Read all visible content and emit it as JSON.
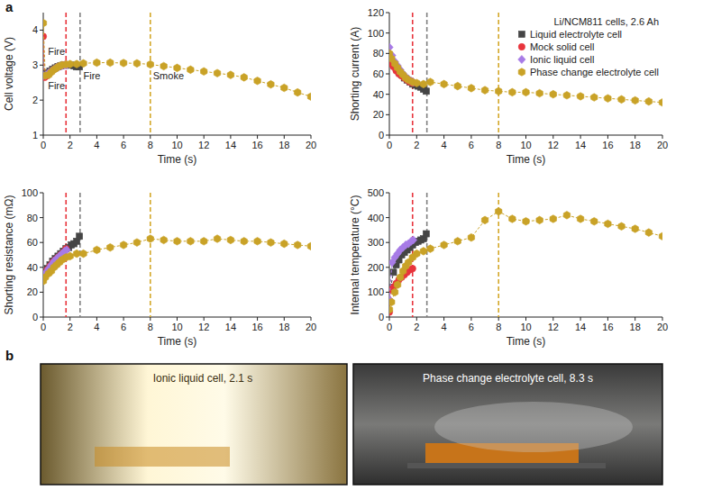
{
  "chart_data": [
    {
      "type": "line",
      "xlabel": "Time (s)",
      "ylabel": "Cell voltage (V)",
      "xlim": [
        0,
        20
      ],
      "xticks": [
        0,
        2,
        4,
        6,
        8,
        10,
        12,
        14,
        16,
        18,
        20
      ],
      "ylim": [
        1,
        4.5
      ],
      "yticks": [
        1,
        2,
        3,
        4
      ],
      "series": [
        {
          "color": "#454545",
          "marker": "square",
          "line_style": "dashed",
          "x": [
            0.1,
            0.3,
            0.5,
            0.7,
            0.9,
            1.1,
            1.3,
            1.5,
            1.7,
            1.9,
            2.1,
            2.3,
            2.5,
            2.7
          ],
          "values": [
            2.75,
            2.78,
            2.83,
            2.88,
            2.92,
            2.96,
            2.98,
            3.0,
            3.0,
            3.0,
            3.0,
            2.98,
            2.95,
            2.95
          ]
        },
        {
          "color": "#e8343c",
          "marker": "circle",
          "line_style": "dashed",
          "x": [
            0,
            0.1,
            0.3,
            0.5,
            0.7,
            0.9,
            1.1,
            1.3,
            1.5,
            1.7
          ],
          "values": [
            3.82,
            2.65,
            2.7,
            2.78,
            2.85,
            2.9,
            2.95,
            2.98,
            3.0,
            3.02
          ]
        },
        {
          "color": "#a77be6",
          "marker": "diamond",
          "line_style": "dashed",
          "x": [
            0,
            0.2,
            0.4,
            0.6,
            0.8,
            1.0,
            1.2,
            1.4,
            1.6,
            1.75
          ],
          "values": [
            2.7,
            2.72,
            2.78,
            2.83,
            2.88,
            2.93,
            2.96,
            2.98,
            3.0,
            3.0
          ]
        },
        {
          "color": "#c9a227",
          "marker": "hexagon",
          "line_style": "dashed",
          "x": [
            0,
            0.15,
            0.4,
            0.6,
            0.8,
            1.0,
            1.2,
            1.4,
            1.7,
            2.0,
            2.5,
            3,
            4,
            5,
            6,
            7,
            8,
            9,
            10,
            11,
            12,
            13,
            14,
            15,
            16,
            17,
            18,
            19,
            20
          ],
          "values": [
            4.2,
            2.7,
            2.72,
            2.8,
            2.87,
            2.92,
            2.97,
            3.0,
            3.02,
            3.03,
            3.03,
            3.05,
            3.07,
            3.07,
            3.06,
            3.05,
            3.02,
            2.97,
            2.92,
            2.87,
            2.82,
            2.77,
            2.72,
            2.65,
            2.55,
            2.45,
            2.35,
            2.22,
            2.1
          ]
        }
      ],
      "reference_lines": [
        {
          "x": 1.7,
          "color": "#e8343c"
        },
        {
          "x": 2.75,
          "color": "#808080"
        },
        {
          "x": 8,
          "color": "#d4a82a"
        }
      ],
      "annotations": [
        {
          "text": "Fire",
          "x": 0.35,
          "y": 3.3
        },
        {
          "text": "Fire",
          "x": 0.35,
          "y": 2.3
        },
        {
          "text": "Fire",
          "x": 3.0,
          "y": 2.6
        },
        {
          "text": "Smoke",
          "x": 8.2,
          "y": 2.6
        }
      ]
    },
    {
      "type": "line",
      "xlabel": "Time (s)",
      "ylabel": "Shorting current (A)",
      "xlim": [
        0,
        20
      ],
      "xticks": [
        0,
        2,
        4,
        6,
        8,
        10,
        12,
        14,
        16,
        18,
        20
      ],
      "ylim": [
        0,
        120
      ],
      "yticks": [
        0,
        20,
        40,
        60,
        80,
        100,
        120
      ],
      "legend": "top-right",
      "legend_title": "Li/NCM811 cells, 2.6 Ah",
      "series": [
        {
          "name": "Liquid electrolyte cell",
          "color": "#454545",
          "marker": "square",
          "line_style": "dashed",
          "x": [
            0.1,
            0.3,
            0.5,
            0.7,
            0.9,
            1.1,
            1.3,
            1.5,
            1.7,
            1.9,
            2.1,
            2.3,
            2.5,
            2.7
          ],
          "values": [
            75,
            70,
            66,
            62,
            59,
            56,
            54,
            52,
            50,
            49,
            48,
            47,
            45,
            43
          ]
        },
        {
          "name": "Mock solid cell",
          "color": "#e8343c",
          "marker": "circle",
          "line_style": "dashed",
          "x": [
            0,
            0.1,
            0.3,
            0.5,
            0.7,
            0.9,
            1.1,
            1.3,
            1.5,
            1.7
          ],
          "values": [
            70,
            72,
            67,
            63,
            60,
            58,
            56,
            54,
            52,
            51
          ]
        },
        {
          "name": "Ionic liquid cell",
          "color": "#a77be6",
          "marker": "diamond",
          "line_style": "dashed",
          "x": [
            0,
            0.2,
            0.4,
            0.6,
            0.8,
            1.0,
            1.2,
            1.4,
            1.6,
            1.75
          ],
          "values": [
            86,
            78,
            72,
            68,
            64,
            60,
            57,
            55,
            53,
            52
          ]
        },
        {
          "name": "Phase change electrolyte cell",
          "color": "#c9a227",
          "marker": "hexagon",
          "line_style": "dashed",
          "x": [
            0,
            0.15,
            0.4,
            0.6,
            0.8,
            1.0,
            1.2,
            1.4,
            1.7,
            2.0,
            2.5,
            3,
            4,
            5,
            6,
            7,
            8,
            9,
            10,
            11,
            12,
            13,
            14,
            15,
            16,
            17,
            18,
            19,
            20
          ],
          "values": [
            80,
            75,
            70,
            66,
            62,
            59,
            56,
            54,
            52,
            51,
            50,
            52,
            50,
            48,
            46,
            44,
            43,
            42,
            42,
            41,
            40,
            39,
            38,
            37,
            36,
            35,
            34,
            33,
            32
          ]
        }
      ],
      "reference_lines": [
        {
          "x": 1.7,
          "color": "#e8343c"
        },
        {
          "x": 2.75,
          "color": "#808080"
        },
        {
          "x": 8,
          "color": "#d4a82a"
        }
      ]
    },
    {
      "type": "line",
      "xlabel": "Time (s)",
      "ylabel": "Shorting resistance (mΩ)",
      "xlim": [
        0,
        20
      ],
      "xticks": [
        0,
        2,
        4,
        6,
        8,
        10,
        12,
        14,
        16,
        18,
        20
      ],
      "ylim": [
        0,
        100
      ],
      "yticks": [
        0,
        20,
        40,
        60,
        80,
        100
      ],
      "series": [
        {
          "color": "#454545",
          "marker": "square",
          "line_style": "dashed",
          "x": [
            0.1,
            0.3,
            0.5,
            0.7,
            0.9,
            1.1,
            1.3,
            1.5,
            1.7,
            1.9,
            2.1,
            2.3,
            2.5,
            2.7
          ],
          "values": [
            36,
            39,
            42,
            45,
            47,
            49,
            51,
            53,
            55,
            56,
            58,
            59,
            61,
            65
          ]
        },
        {
          "color": "#e8343c",
          "marker": "circle",
          "line_style": "dashed",
          "x": [
            0,
            0.1,
            0.3,
            0.5,
            0.7,
            0.9,
            1.1,
            1.3,
            1.5,
            1.7
          ],
          "values": [
            31,
            34,
            38,
            41,
            44,
            46,
            48,
            50,
            52,
            55
          ]
        },
        {
          "color": "#a77be6",
          "marker": "diamond",
          "line_style": "dashed",
          "x": [
            0,
            0.2,
            0.4,
            0.6,
            0.8,
            1.0,
            1.2,
            1.4,
            1.6,
            1.75
          ],
          "values": [
            32,
            36,
            39,
            42,
            45,
            47,
            49,
            51,
            53,
            54
          ]
        },
        {
          "color": "#c9a227",
          "marker": "hexagon",
          "line_style": "dashed",
          "x": [
            0,
            0.15,
            0.4,
            0.6,
            0.8,
            1.0,
            1.2,
            1.4,
            1.7,
            2.0,
            2.5,
            3,
            4,
            5,
            6,
            7,
            8,
            9,
            10,
            11,
            12,
            13,
            14,
            15,
            16,
            17,
            18,
            19,
            20
          ],
          "values": [
            29,
            32,
            35,
            37,
            40,
            42,
            44,
            46,
            48,
            49,
            51,
            51,
            54,
            56,
            58,
            60,
            63,
            62,
            61,
            61,
            61,
            63,
            62,
            61,
            61,
            60,
            59,
            58,
            57
          ]
        }
      ],
      "reference_lines": [
        {
          "x": 1.7,
          "color": "#e8343c"
        },
        {
          "x": 2.75,
          "color": "#808080"
        },
        {
          "x": 8,
          "color": "#d4a82a"
        }
      ]
    },
    {
      "type": "line",
      "xlabel": "Time (s)",
      "ylabel": "Internal temperature (°C)",
      "xlim": [
        0,
        20
      ],
      "xticks": [
        0,
        2,
        4,
        6,
        8,
        10,
        12,
        14,
        16,
        18,
        20
      ],
      "ylim": [
        0,
        500
      ],
      "yticks": [
        0,
        100,
        200,
        300,
        400,
        500
      ],
      "series": [
        {
          "color": "#454545",
          "marker": "square",
          "line_style": "dashed",
          "x": [
            0.1,
            0.3,
            0.5,
            0.7,
            0.9,
            1.1,
            1.3,
            1.5,
            1.7,
            1.9,
            2.1,
            2.3,
            2.5,
            2.7
          ],
          "values": [
            120,
            180,
            210,
            230,
            250,
            260,
            270,
            280,
            290,
            300,
            305,
            310,
            315,
            335
          ]
        },
        {
          "color": "#e8343c",
          "marker": "circle",
          "line_style": "dashed",
          "x": [
            0,
            0.1,
            0.3,
            0.5,
            0.7,
            0.9,
            1.1,
            1.3,
            1.5,
            1.7
          ],
          "values": [
            20,
            110,
            120,
            135,
            150,
            160,
            170,
            180,
            190,
            195
          ]
        },
        {
          "color": "#a77be6",
          "marker": "diamond",
          "line_style": "dashed",
          "x": [
            0,
            0.2,
            0.4,
            0.6,
            0.8,
            1.0,
            1.2,
            1.4,
            1.6,
            1.75
          ],
          "values": [
            70,
            220,
            240,
            255,
            270,
            280,
            290,
            295,
            305,
            310
          ]
        },
        {
          "color": "#c9a227",
          "marker": "hexagon",
          "line_style": "dashed",
          "x": [
            0,
            0.15,
            0.4,
            0.6,
            0.8,
            1.0,
            1.2,
            1.4,
            1.7,
            2.0,
            2.5,
            3,
            4,
            5,
            6,
            7,
            8,
            9,
            10,
            11,
            12,
            13,
            14,
            15,
            16,
            17,
            18,
            19,
            20
          ],
          "values": [
            30,
            60,
            100,
            130,
            160,
            185,
            205,
            220,
            240,
            255,
            265,
            275,
            290,
            305,
            320,
            390,
            425,
            395,
            385,
            390,
            395,
            410,
            395,
            385,
            375,
            365,
            355,
            340,
            325
          ]
        }
      ],
      "reference_lines": [
        {
          "x": 1.7,
          "color": "#e8343c"
        },
        {
          "x": 2.75,
          "color": "#808080"
        },
        {
          "x": 8,
          "color": "#d4a82a"
        }
      ]
    }
  ],
  "figure": {
    "panel_labels": [
      "a",
      "b"
    ],
    "photos": [
      {
        "caption": "Ionic liquid cell, 2.1 s"
      },
      {
        "caption": "Phase change electrolyte cell, 8.3 s"
      }
    ]
  }
}
